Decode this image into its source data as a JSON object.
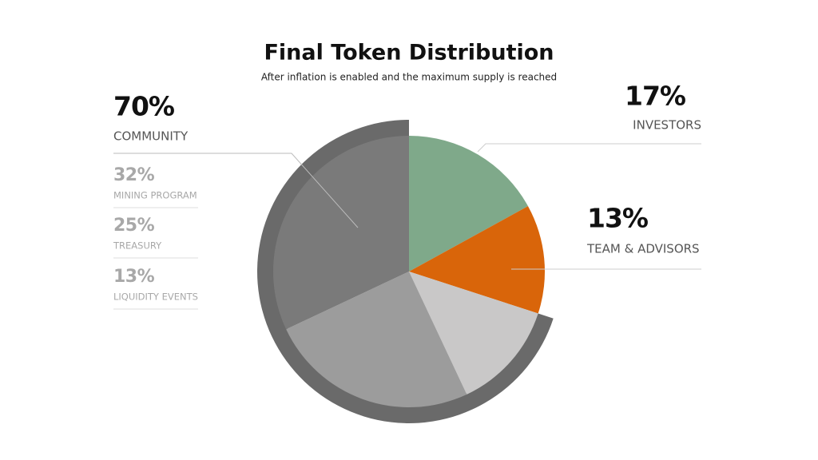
{
  "chart_data": {
    "type": "pie",
    "title": "Final Token Distribution",
    "subtitle": "After inflation is enabled and the maximum supply is reached",
    "categories": [
      "INVESTORS",
      "TEAM & ADVISORS",
      "LIQUIDITY EVENTS",
      "TREASURY",
      "MINING PROGRAM"
    ],
    "values": [
      17,
      13,
      13,
      25,
      32
    ],
    "value_labels": [
      "17%",
      "13%",
      "13%",
      "25%",
      "32%"
    ],
    "colors": [
      "#7fa98a",
      "#d9650a",
      "#c9c8c8",
      "#9c9c9c",
      "#7a7a7a"
    ],
    "group": {
      "name": "COMMUNITY",
      "value": 70,
      "value_label": "70%",
      "color": "#6a6a6a"
    }
  }
}
